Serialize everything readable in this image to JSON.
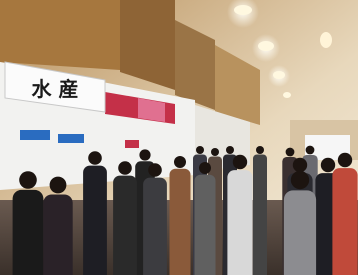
{
  "signs": {
    "main": "水 産"
  }
}
